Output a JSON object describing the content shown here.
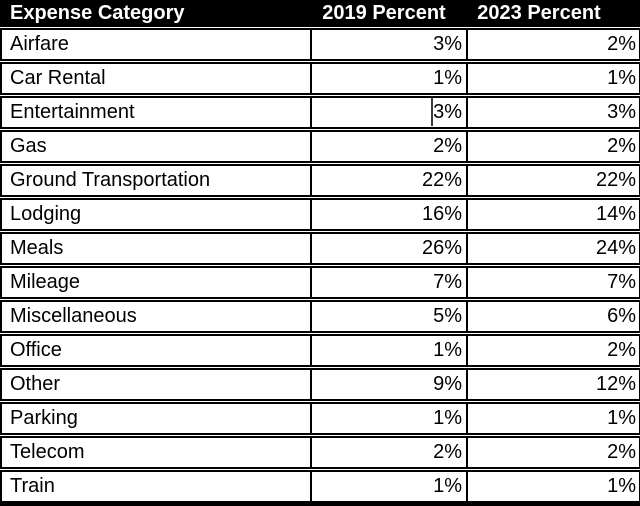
{
  "table": {
    "columns": [
      "Expense Category",
      "2019 Percent",
      "2023 Percent"
    ],
    "rows": [
      {
        "category": "Airfare",
        "p2019": "3%",
        "p2023": "2%"
      },
      {
        "category": "Car Rental",
        "p2019": "1%",
        "p2023": "1%"
      },
      {
        "category": "Entertainment",
        "p2019": "3%",
        "p2023": "3%"
      },
      {
        "category": "Gas",
        "p2019": "2%",
        "p2023": "2%"
      },
      {
        "category": "Ground Transportation",
        "p2019": "22%",
        "p2023": "22%"
      },
      {
        "category": "Lodging",
        "p2019": "16%",
        "p2023": "14%"
      },
      {
        "category": "Meals",
        "p2019": "26%",
        "p2023": "24%"
      },
      {
        "category": "Mileage",
        "p2019": "7%",
        "p2023": "7%"
      },
      {
        "category": "Miscellaneous",
        "p2019": "5%",
        "p2023": "6%"
      },
      {
        "category": "Office",
        "p2019": "1%",
        "p2023": "2%"
      },
      {
        "category": "Other",
        "p2019": "9%",
        "p2023": "12%"
      },
      {
        "category": "Parking",
        "p2019": "1%",
        "p2023": "1%"
      },
      {
        "category": "Telecom",
        "p2019": "2%",
        "p2023": "2%"
      },
      {
        "category": "Train",
        "p2019": "1%",
        "p2023": "1%"
      }
    ]
  },
  "edit_state": {
    "caret_row": "Entertainment",
    "caret_column": "2019 Percent"
  },
  "colors": {
    "header_bg": "#000000",
    "header_text": "#ffffff",
    "body_bg": "#ffffff",
    "body_text": "#000000",
    "border": "#000000"
  },
  "chart_data": {
    "type": "table",
    "title": "",
    "columns": [
      "Expense Category",
      "2019 Percent",
      "2023 Percent"
    ],
    "categories": [
      "Airfare",
      "Car Rental",
      "Entertainment",
      "Gas",
      "Ground Transportation",
      "Lodging",
      "Meals",
      "Mileage",
      "Miscellaneous",
      "Office",
      "Other",
      "Parking",
      "Telecom",
      "Train"
    ],
    "series": [
      {
        "name": "2019 Percent",
        "values": [
          3,
          1,
          3,
          2,
          22,
          16,
          26,
          7,
          5,
          1,
          9,
          1,
          2,
          1
        ]
      },
      {
        "name": "2023 Percent",
        "values": [
          2,
          1,
          3,
          2,
          22,
          14,
          24,
          7,
          6,
          2,
          12,
          1,
          2,
          1
        ]
      }
    ]
  }
}
